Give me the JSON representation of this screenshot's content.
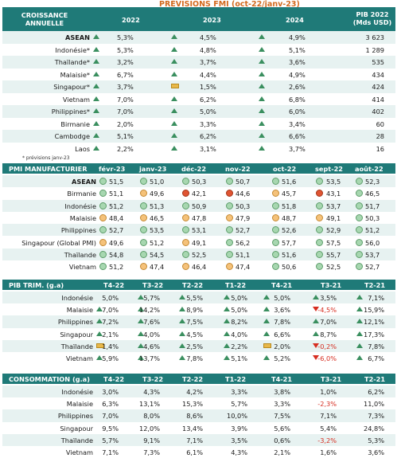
{
  "title": "PRÉVISIONS FMI (oct-22/janv-23)",
  "s1": {
    "h_label": "CROISSANCE ANNUELLE",
    "h_years": [
      "2022",
      "2023",
      "2024"
    ],
    "h_pib": "PIB 2022 (Mds USD)",
    "rows": [
      {
        "c": "ASEAN",
        "b": true,
        "v": [
          "5,3%",
          "4,5%",
          "4,9%"
        ],
        "i": [
          "u",
          "u",
          "u"
        ],
        "p": "3 623"
      },
      {
        "c": "Indonésie*",
        "v": [
          "5,3%",
          "4,8%",
          "5,1%"
        ],
        "i": [
          "u",
          "u",
          "u"
        ],
        "p": "1 289"
      },
      {
        "c": "Thaïlande*",
        "v": [
          "3,2%",
          "3,7%",
          "3,6%"
        ],
        "i": [
          "u",
          "u",
          "u"
        ],
        "p": "535"
      },
      {
        "c": "Malaisie*",
        "v": [
          "6,7%",
          "4,4%",
          "4,9%"
        ],
        "i": [
          "u",
          "u",
          "u"
        ],
        "p": "434"
      },
      {
        "c": "Singapour*",
        "v": [
          "3,7%",
          "1,5%",
          "2,6%"
        ],
        "i": [
          "u",
          "f",
          "u"
        ],
        "p": "424"
      },
      {
        "c": "Vietnam",
        "v": [
          "7,0%",
          "6,2%",
          "6,8%"
        ],
        "i": [
          "u",
          "u",
          "u"
        ],
        "p": "414"
      },
      {
        "c": "Philippines*",
        "v": [
          "7,0%",
          "5,0%",
          "6,0%"
        ],
        "i": [
          "u",
          "u",
          "u"
        ],
        "p": "402"
      },
      {
        "c": "Birmanie",
        "v": [
          "2,0%",
          "3,3%",
          "3,4%"
        ],
        "i": [
          "u",
          "u",
          "u"
        ],
        "p": "60"
      },
      {
        "c": "Cambodge",
        "v": [
          "5,1%",
          "6,2%",
          "6,6%"
        ],
        "i": [
          "u",
          "u",
          "u"
        ],
        "p": "28"
      },
      {
        "c": "Laos",
        "v": [
          "2,2%",
          "3,1%",
          "3,7%"
        ],
        "i": [
          "u",
          "u",
          "u"
        ],
        "p": "16"
      }
    ],
    "note": "* prévisions janv-23"
  },
  "s2": {
    "h_label": "PMI MANUFACTURIER",
    "h_cols": [
      "févr-23",
      "janv-23",
      "déc-22",
      "nov-22",
      "oct-22",
      "sept-22",
      "août-22"
    ],
    "rows": [
      {
        "c": "ASEAN",
        "b": true,
        "v": [
          "51,5",
          "51,0",
          "50,3",
          "50,7",
          "51,6",
          "53,5",
          "52,3"
        ],
        "d": [
          "g",
          "g",
          "g",
          "g",
          "g",
          "g",
          "g"
        ]
      },
      {
        "c": "Birmanie",
        "v": [
          "51,1",
          "49,6",
          "42,1",
          "44,6",
          "45,7",
          "43,1",
          "46,5"
        ],
        "d": [
          "g",
          "o",
          "r",
          "r",
          "o",
          "r",
          "g"
        ]
      },
      {
        "c": "Indonésie",
        "v": [
          "51,2",
          "51,3",
          "50,9",
          "50,3",
          "51,8",
          "53,7",
          "51,7"
        ],
        "d": [
          "g",
          "g",
          "g",
          "g",
          "g",
          "g",
          "g"
        ]
      },
      {
        "c": "Malaisie",
        "v": [
          "48,4",
          "46,5",
          "47,8",
          "47,9",
          "48,7",
          "49,1",
          "50,3"
        ],
        "d": [
          "o",
          "o",
          "o",
          "o",
          "o",
          "o",
          "g"
        ]
      },
      {
        "c": "Philippines",
        "v": [
          "52,7",
          "53,5",
          "53,1",
          "52,7",
          "52,6",
          "52,9",
          "51,2"
        ],
        "d": [
          "g",
          "g",
          "g",
          "g",
          "g",
          "g",
          "g"
        ]
      },
      {
        "c": "Singapour (Global PMI)",
        "v": [
          "49,6",
          "51,2",
          "49,1",
          "56,2",
          "57,7",
          "57,5",
          "56,0"
        ],
        "d": [
          "o",
          "g",
          "o",
          "g",
          "g",
          "g",
          "g"
        ]
      },
      {
        "c": "Thaïlande",
        "v": [
          "54,8",
          "54,5",
          "52,5",
          "51,1",
          "51,6",
          "55,7",
          "53,7"
        ],
        "d": [
          "g",
          "g",
          "g",
          "g",
          "g",
          "g",
          "g"
        ]
      },
      {
        "c": "Vietnam",
        "v": [
          "51,2",
          "47,4",
          "46,4",
          "47,4",
          "50,6",
          "52,5",
          "52,7"
        ],
        "d": [
          "g",
          "o",
          "o",
          "o",
          "g",
          "g",
          "g"
        ]
      }
    ]
  },
  "s3": {
    "h_label": "PIB TRIM. (g.a)",
    "h_cols": [
      "T4-22",
      "T3-22",
      "T2-22",
      "T1-22",
      "T4-21",
      "T3-21",
      "T2-21"
    ],
    "rows": [
      {
        "c": "Indonésie",
        "v": [
          "5,0%",
          "5,7%",
          "5,5%",
          "5,0%",
          "5,0%",
          "3,5%",
          "7,1%"
        ],
        "i": [
          "",
          "u",
          "u",
          "u",
          "u",
          "u",
          "u"
        ]
      },
      {
        "c": "Malaisie",
        "v": [
          "7,0%",
          "14,2%",
          "8,9%",
          "5,0%",
          "3,6%",
          "-4,5%",
          "15,9%"
        ],
        "i": [
          "u",
          "u",
          "u",
          "u",
          "u",
          "d",
          "u"
        ]
      },
      {
        "c": "Philippines",
        "v": [
          "7,2%",
          "7,6%",
          "7,5%",
          "8,2%",
          "7,8%",
          "7,0%",
          "12,1%"
        ],
        "i": [
          "u",
          "u",
          "u",
          "u",
          "u",
          "u",
          "u"
        ]
      },
      {
        "c": "Singapour",
        "v": [
          "2,1%",
          "4,0%",
          "4,5%",
          "4,0%",
          "6,6%",
          "8,7%",
          "17,3%"
        ],
        "i": [
          "u",
          "u",
          "u",
          "u",
          "u",
          "u",
          "u"
        ]
      },
      {
        "c": "Thaïlande",
        "v": [
          "1,4%",
          "4,6%",
          "2,5%",
          "2,2%",
          "2,0%",
          "-0,2%",
          "7,8%"
        ],
        "i": [
          "f",
          "u",
          "u",
          "u",
          "f",
          "d",
          "u"
        ]
      },
      {
        "c": "Vietnam",
        "v": [
          "5,9%",
          "13,7%",
          "7,8%",
          "5,1%",
          "5,2%",
          "-6,0%",
          "6,7%"
        ],
        "i": [
          "u",
          "u",
          "u",
          "u",
          "u",
          "d",
          "u"
        ]
      }
    ]
  },
  "s4": {
    "h_label": "CONSOMMATION (g.a)",
    "h_cols": [
      "T4-22",
      "T3-22",
      "T2-22",
      "T1-22",
      "T4-21",
      "T3-21",
      "T2-21"
    ],
    "rows": [
      {
        "c": "Indonésie",
        "v": [
          "3,0%",
          "4,3%",
          "4,2%",
          "3,3%",
          "3,8%",
          "1,0%",
          "6,2%"
        ]
      },
      {
        "c": "Malaisie",
        "v": [
          "6,3%",
          "13,1%",
          "15,3%",
          "5,7%",
          "3,3%",
          "-2,3%",
          "11,0%"
        ]
      },
      {
        "c": "Philippines",
        "v": [
          "7,0%",
          "8,0%",
          "8,6%",
          "10,0%",
          "7,5%",
          "7,1%",
          "7,3%"
        ]
      },
      {
        "c": "Singapour",
        "v": [
          "9,5%",
          "12,0%",
          "13,4%",
          "3,9%",
          "5,6%",
          "5,4%",
          "24,8%"
        ]
      },
      {
        "c": "Thaïlande",
        "v": [
          "5,7%",
          "9,1%",
          "7,1%",
          "3,5%",
          "0,6%",
          "-3,2%",
          "5,3%"
        ]
      },
      {
        "c": "Vietnam",
        "v": [
          "7,1%",
          "7,3%",
          "6,1%",
          "4,3%",
          "2,1%",
          "1,6%",
          "3,6%"
        ]
      }
    ]
  }
}
